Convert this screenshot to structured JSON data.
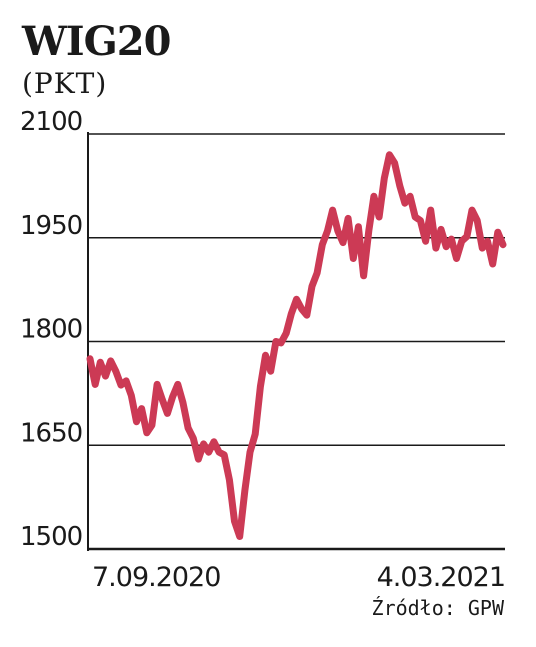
{
  "title": "WIG20",
  "unit": "(PKT)",
  "source": "Źródło: GPW",
  "colors": {
    "line": "#cc3a55",
    "axis": "#1a1a1a",
    "grid": "#1a1a1a"
  },
  "chart_data": {
    "type": "line",
    "title": "WIG20",
    "ylabel": "(PKT)",
    "xlabel": "",
    "ylim": [
      1500,
      2100
    ],
    "yticks": [
      1500,
      1650,
      1800,
      1950,
      2100
    ],
    "yticks_labels": [
      "1500",
      "1650",
      "1800",
      "1950",
      "2100"
    ],
    "x_range": [
      "2020-09-07",
      "2021-03-04"
    ],
    "x_tick_labels": [
      "7.09.2020",
      "4.03.2021"
    ],
    "grid": true,
    "series": [
      {
        "values": [
          1775,
          1738,
          1770,
          1750,
          1772,
          1757,
          1737,
          1743,
          1722,
          1684,
          1703,
          1668,
          1679,
          1738,
          1716,
          1696,
          1720,
          1738,
          1712,
          1675,
          1660,
          1630,
          1652,
          1640,
          1655,
          1640,
          1636,
          1600,
          1540,
          1518,
          1585,
          1640,
          1666,
          1735,
          1780,
          1757,
          1800,
          1798,
          1812,
          1840,
          1861,
          1847,
          1838,
          1880,
          1899,
          1940,
          1960,
          1990,
          1960,
          1943,
          1978,
          1920,
          1966,
          1895,
          1960,
          2010,
          1980,
          2036,
          2070,
          2058,
          2025,
          2000,
          2010,
          1980,
          1975,
          1945,
          1990,
          1935,
          1962,
          1937,
          1948,
          1920,
          1945,
          1952,
          1990,
          1975,
          1935,
          1945,
          1912,
          1958,
          1940
        ]
      }
    ]
  }
}
